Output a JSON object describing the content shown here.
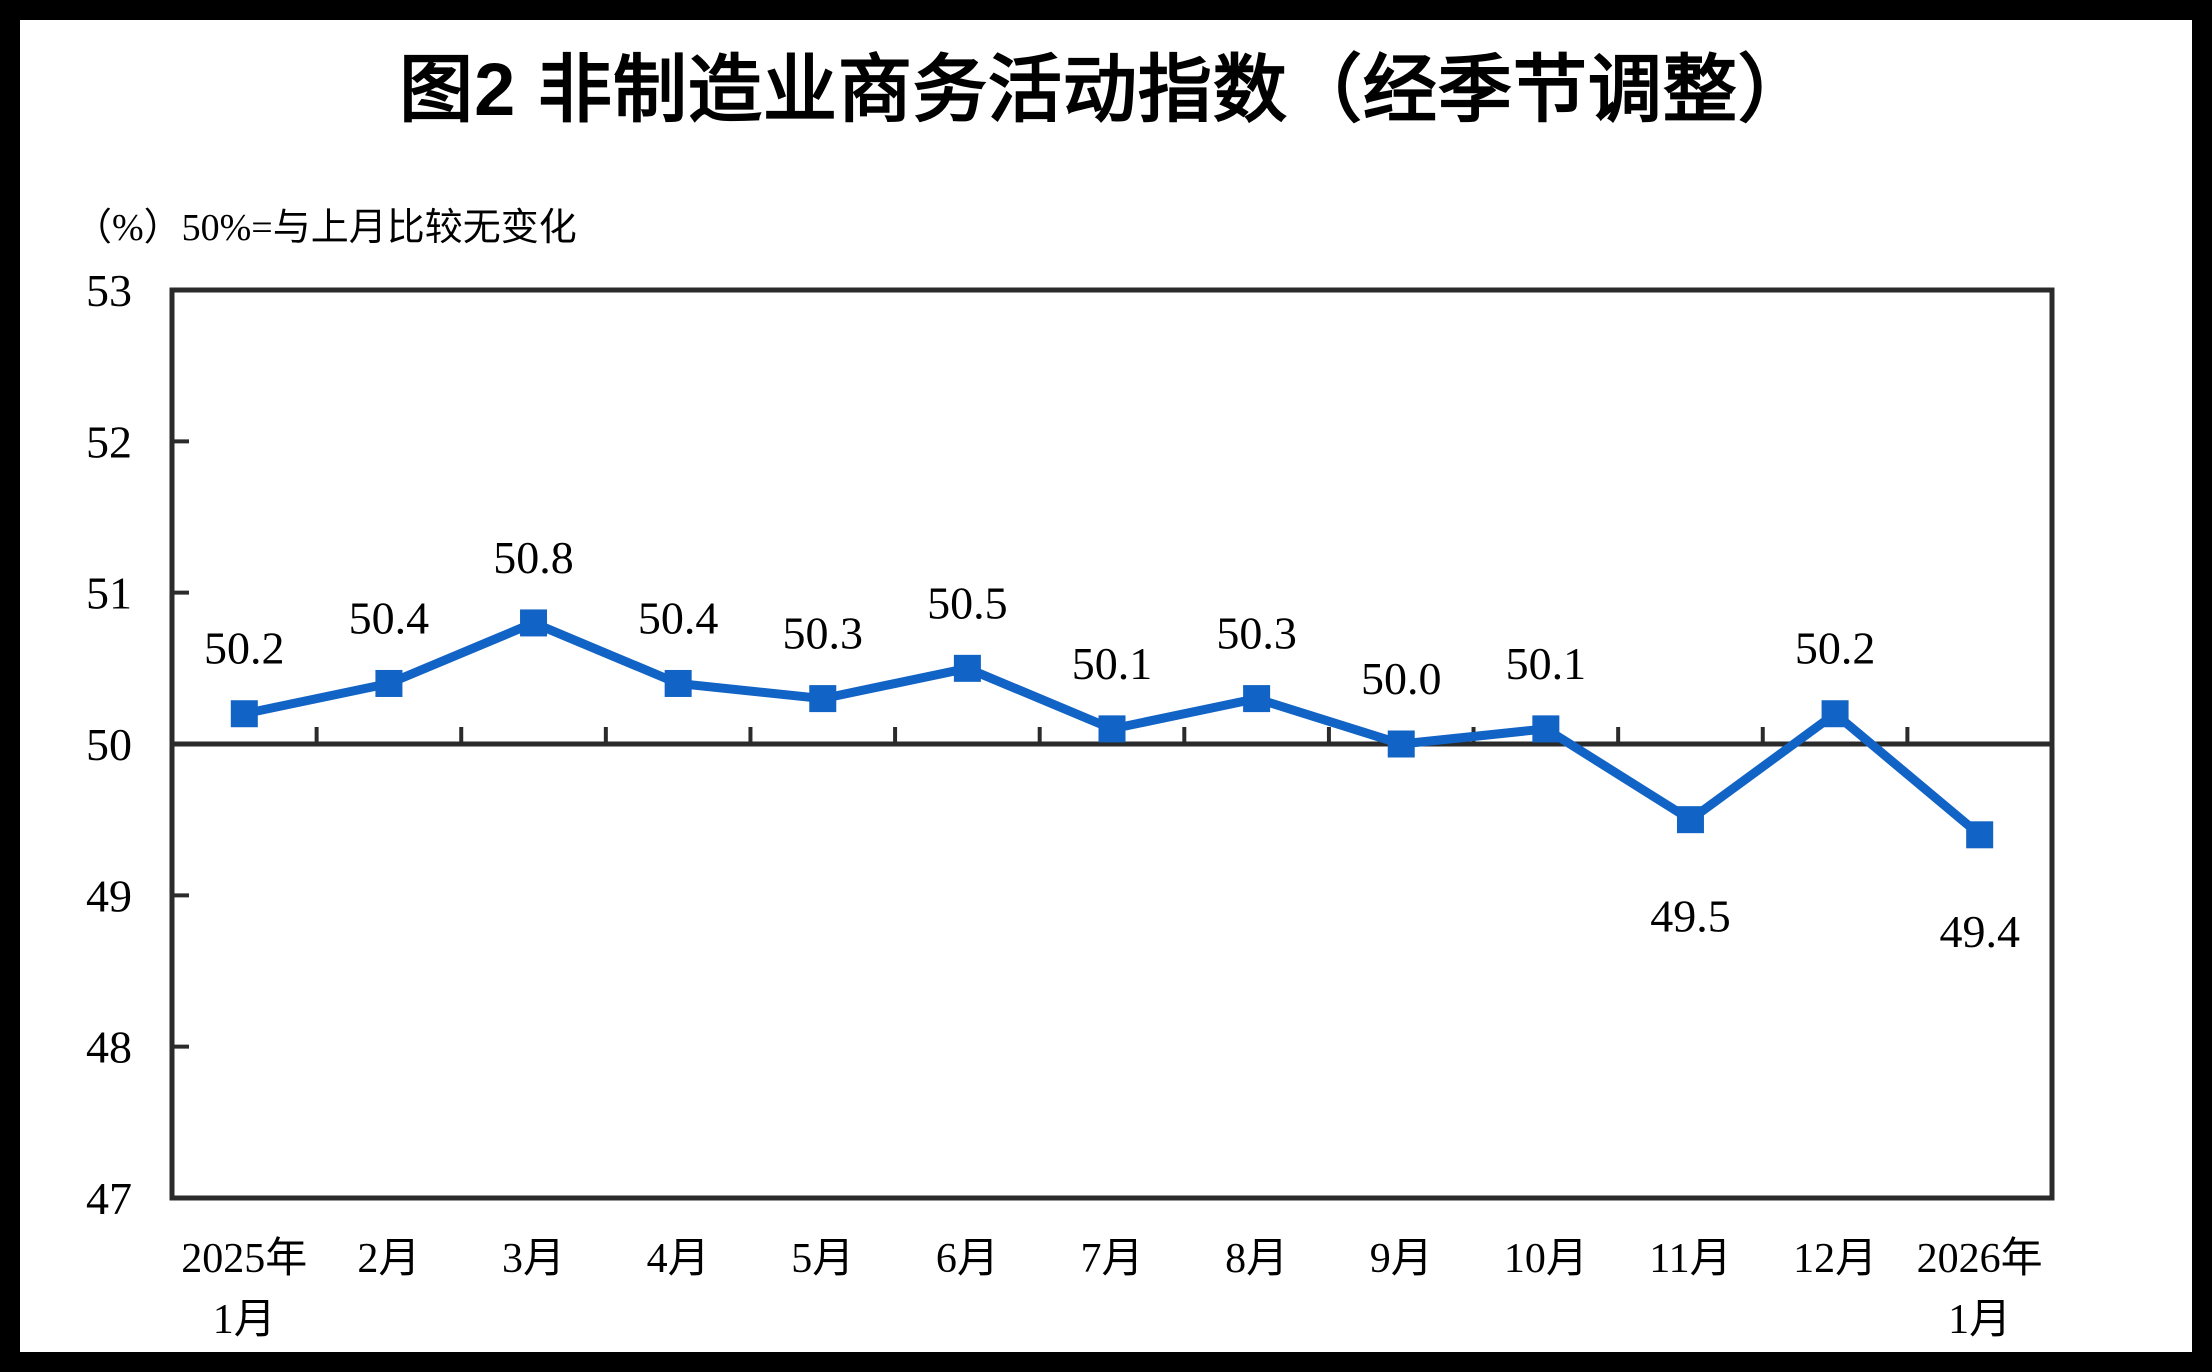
{
  "title": "图2 非制造业商务活动指数（经季节调整）",
  "axis_note": "（%）50%=与上月比较无变化",
  "chart_data": {
    "type": "line",
    "categories": [
      [
        "2025年",
        "1月"
      ],
      [
        "2月"
      ],
      [
        "3月"
      ],
      [
        "4月"
      ],
      [
        "5月"
      ],
      [
        "6月"
      ],
      [
        "7月"
      ],
      [
        "8月"
      ],
      [
        "9月"
      ],
      [
        "10月"
      ],
      [
        "11月"
      ],
      [
        "12月"
      ],
      [
        "2026年",
        "1月"
      ]
    ],
    "values": [
      50.2,
      50.4,
      50.8,
      50.4,
      50.3,
      50.5,
      50.1,
      50.3,
      50.0,
      50.1,
      49.5,
      50.2,
      49.4
    ],
    "data_labels": [
      "50.2",
      "50.4",
      "50.8",
      "50.4",
      "50.3",
      "50.5",
      "50.1",
      "50.3",
      "50.0",
      "50.1",
      "49.5",
      "50.2",
      "49.4"
    ],
    "data_label_positions": [
      "above",
      "above",
      "above",
      "above",
      "above",
      "above",
      "above",
      "above",
      "above",
      "above",
      "below",
      "above",
      "below"
    ],
    "y_ticks": [
      53,
      52,
      51,
      50,
      49,
      48,
      47
    ],
    "ylim": [
      47,
      53
    ],
    "baseline_value": 50,
    "grid": "off",
    "legend": "none",
    "colors": {
      "line": "#1163C5",
      "axis": "#2B2B2B",
      "text": "#000000",
      "background": "#FFFFFF"
    }
  }
}
